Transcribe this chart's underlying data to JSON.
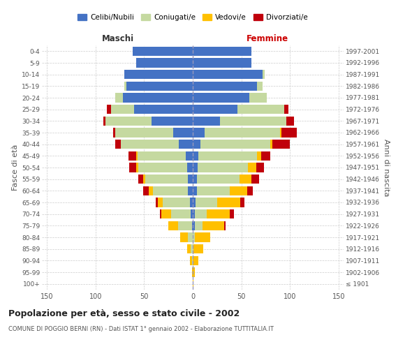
{
  "age_groups": [
    "100+",
    "95-99",
    "90-94",
    "85-89",
    "80-84",
    "75-79",
    "70-74",
    "65-69",
    "60-64",
    "55-59",
    "50-54",
    "45-49",
    "40-44",
    "35-39",
    "30-34",
    "25-29",
    "20-24",
    "15-19",
    "10-14",
    "5-9",
    "0-4"
  ],
  "birth_years": [
    "≤ 1901",
    "1902-1906",
    "1907-1911",
    "1912-1916",
    "1917-1921",
    "1922-1926",
    "1927-1931",
    "1932-1936",
    "1937-1941",
    "1942-1946",
    "1947-1951",
    "1952-1956",
    "1957-1961",
    "1962-1966",
    "1967-1971",
    "1972-1976",
    "1977-1981",
    "1982-1986",
    "1987-1991",
    "1992-1996",
    "1997-2001"
  ],
  "colors": {
    "celibi": "#4472c4",
    "coniugati": "#c5d9a0",
    "vedovi": "#ffc000",
    "divorziati": "#c0000b"
  },
  "maschi": {
    "celibi": [
      0,
      0,
      0,
      0,
      0,
      1,
      2,
      3,
      5,
      5,
      6,
      7,
      14,
      20,
      42,
      60,
      72,
      68,
      70,
      58,
      62
    ],
    "coniugati": [
      0,
      0,
      1,
      2,
      5,
      14,
      20,
      28,
      36,
      44,
      50,
      50,
      60,
      60,
      48,
      24,
      8,
      2,
      0,
      0,
      0
    ],
    "vedovi": [
      0,
      1,
      2,
      4,
      8,
      10,
      10,
      5,
      4,
      2,
      2,
      1,
      0,
      0,
      0,
      0,
      0,
      0,
      0,
      0,
      0
    ],
    "divorziati": [
      0,
      0,
      0,
      0,
      0,
      0,
      2,
      2,
      6,
      5,
      7,
      8,
      6,
      2,
      2,
      4,
      0,
      0,
      0,
      0,
      0
    ]
  },
  "femmine": {
    "nubili": [
      0,
      0,
      0,
      0,
      0,
      2,
      2,
      3,
      4,
      4,
      5,
      6,
      8,
      12,
      28,
      46,
      58,
      66,
      72,
      60,
      60
    ],
    "coniugate": [
      0,
      0,
      0,
      1,
      2,
      8,
      12,
      22,
      34,
      44,
      52,
      60,
      72,
      78,
      68,
      48,
      18,
      6,
      2,
      0,
      0
    ],
    "vedove": [
      1,
      2,
      6,
      10,
      16,
      22,
      24,
      24,
      18,
      12,
      8,
      4,
      2,
      1,
      0,
      0,
      0,
      0,
      0,
      0,
      0
    ],
    "divorziate": [
      0,
      0,
      0,
      0,
      0,
      2,
      4,
      4,
      6,
      8,
      8,
      10,
      18,
      16,
      8,
      4,
      0,
      0,
      0,
      0,
      0
    ]
  },
  "xlim": 155,
  "title": "Popolazione per età, sesso e stato civile - 2002",
  "subtitle": "COMUNE DI POGGIO BERNI (RN) - Dati ISTAT 1° gennaio 2002 - Elaborazione TUTTITALIA.IT",
  "ylabel_left": "Fasce di età",
  "ylabel_right": "Anni di nascita",
  "label_maschi": "Maschi",
  "label_femmine": "Femmine",
  "bg_color": "#ffffff",
  "grid_color": "#cccccc",
  "bar_height": 0.8,
  "legend_labels": [
    "Celibi/Nubili",
    "Coniugati/e",
    "Vedovi/e",
    "Divorziati/e"
  ]
}
